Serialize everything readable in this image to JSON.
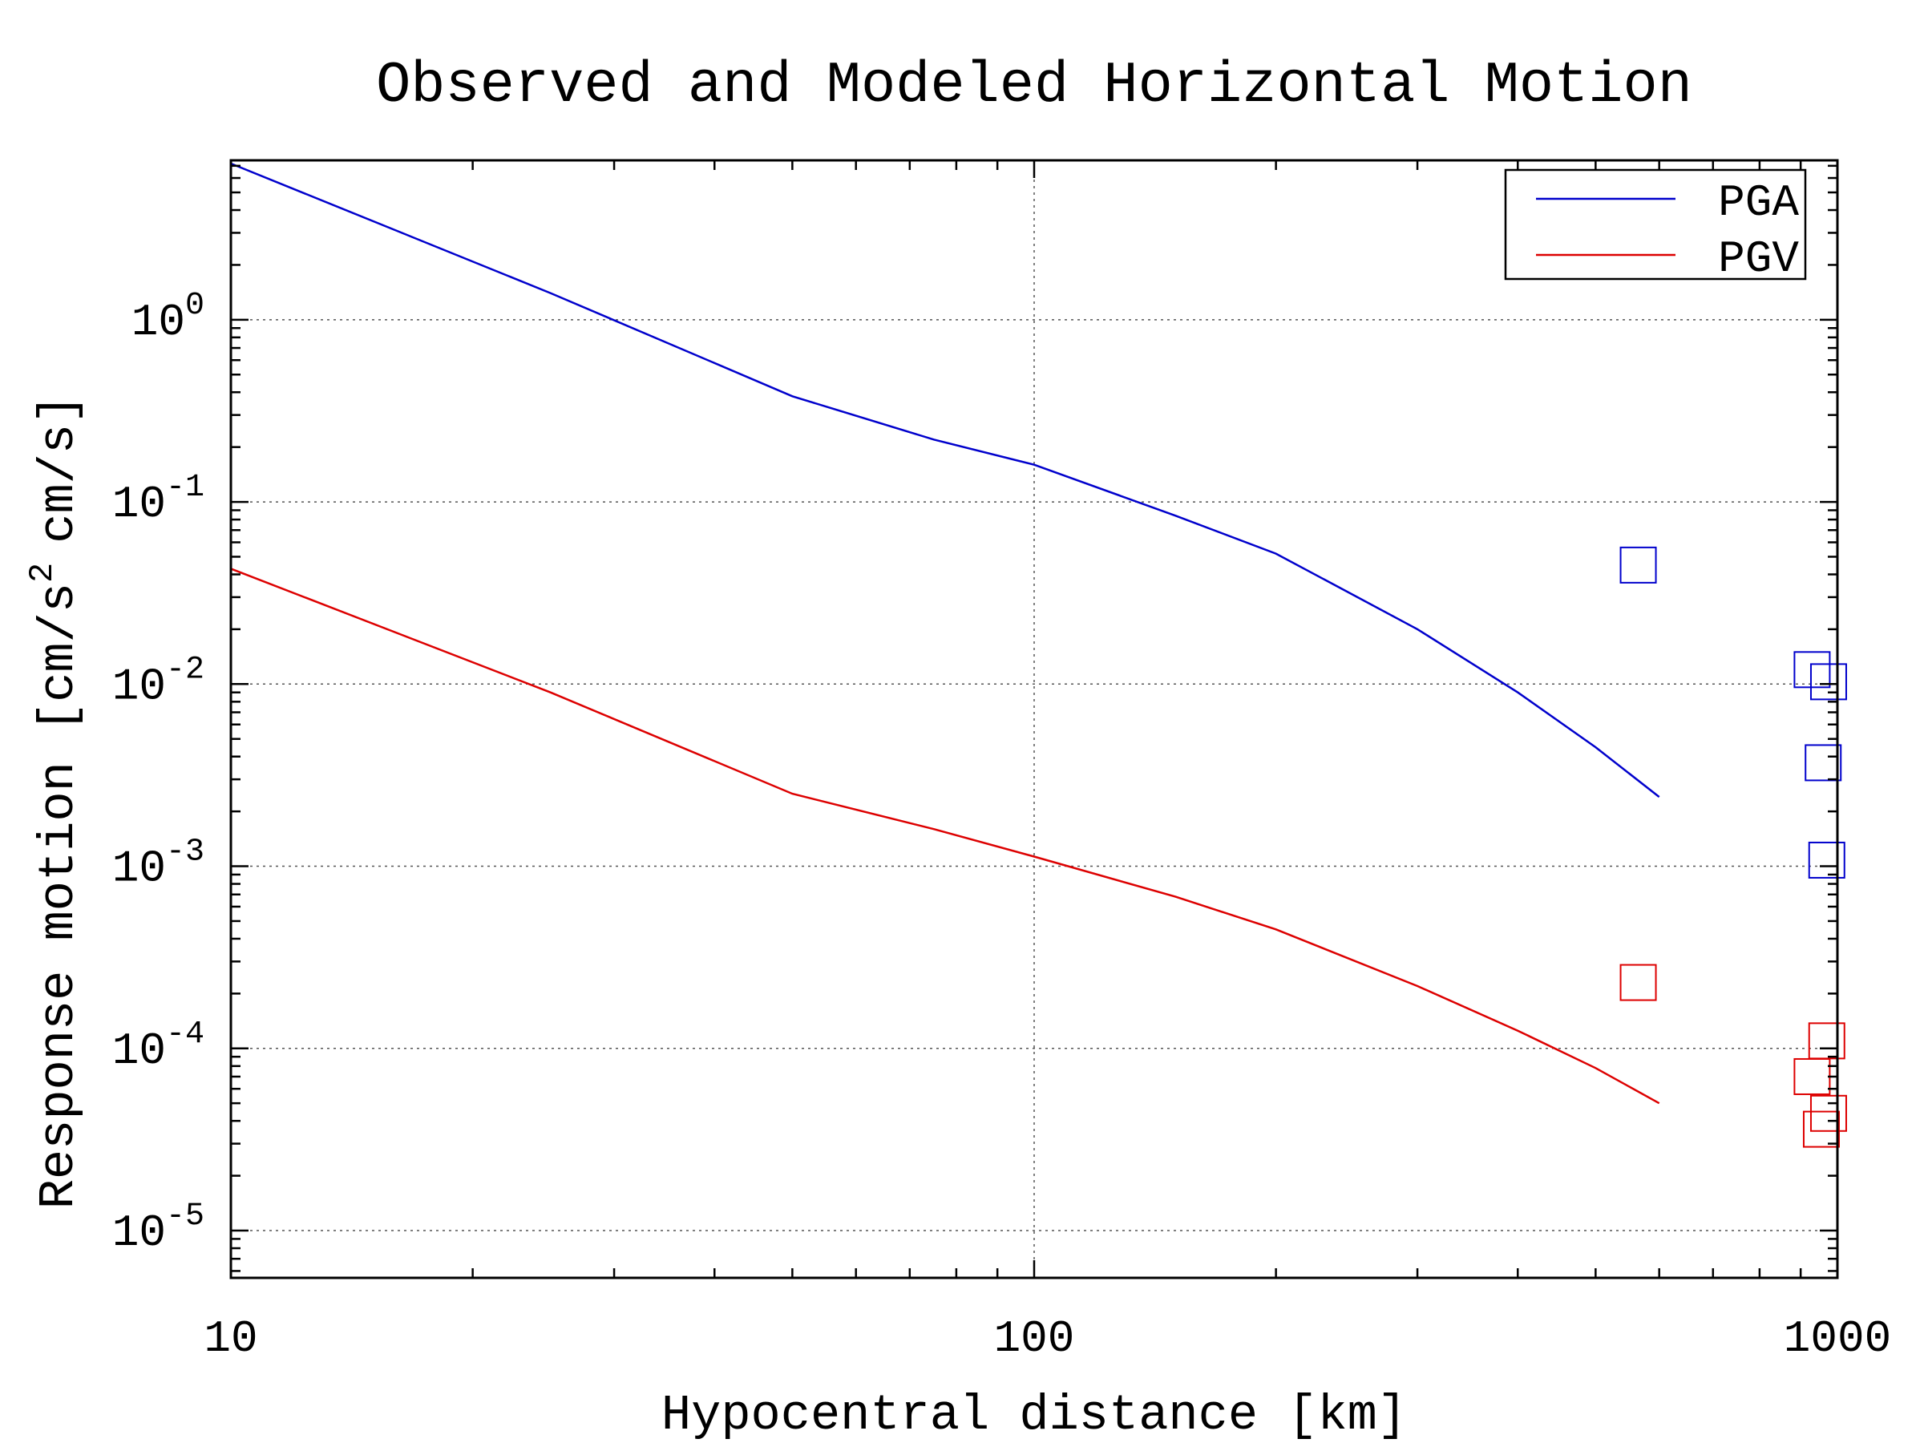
{
  "chart_data": {
    "type": "line",
    "title": "Observed and Modeled Horizontal Motion",
    "xlabel": "Hypocentral distance [km]",
    "ylabel": "Response motion [cm/s",
    "ylabel_sup": "2",
    "ylabel_tail": "cm/s]",
    "x_scale": "log",
    "y_scale": "log",
    "xlim": [
      10,
      1000
    ],
    "ylim": [
      5.5e-06,
      7.5
    ],
    "grid": true,
    "legend_position": "top-right",
    "x_ticks": [
      {
        "value": 10,
        "label": "10"
      },
      {
        "value": 100,
        "label": "100"
      },
      {
        "value": 1000,
        "label": "1000"
      }
    ],
    "y_ticks": [
      {
        "value": 1,
        "base": "10",
        "exp": "0"
      },
      {
        "value": 0.1,
        "base": "10",
        "exp": "-1"
      },
      {
        "value": 0.01,
        "base": "10",
        "exp": "-2"
      },
      {
        "value": 0.001,
        "base": "10",
        "exp": "-3"
      },
      {
        "value": 0.0001,
        "base": "10",
        "exp": "-4"
      },
      {
        "value": 1e-05,
        "base": "10",
        "exp": "-5"
      }
    ],
    "series": [
      {
        "name": "PGA",
        "color": "#0000cc",
        "x": [
          10,
          25,
          50,
          75,
          100,
          150,
          200,
          300,
          400,
          500,
          600
        ],
        "y": [
          7.2,
          1.4,
          0.38,
          0.22,
          0.16,
          0.084,
          0.052,
          0.02,
          0.009,
          0.0045,
          0.0024
        ]
      },
      {
        "name": "PGV",
        "color": "#dd0000",
        "x": [
          10,
          25,
          50,
          75,
          100,
          150,
          200,
          300,
          400,
          500,
          600
        ],
        "y": [
          0.043,
          0.009,
          0.0025,
          0.0016,
          0.00113,
          0.00068,
          0.00045,
          0.00022,
          0.000125,
          7.8e-05,
          5e-05
        ]
      }
    ],
    "observed": [
      {
        "series": "PGA",
        "color": "#0000cc",
        "points": [
          {
            "x": 565,
            "y": 0.045
          },
          {
            "x": 930,
            "y": 0.012
          },
          {
            "x": 975,
            "y": 0.0103
          },
          {
            "x": 960,
            "y": 0.0037
          },
          {
            "x": 970,
            "y": 0.00108
          }
        ]
      },
      {
        "series": "PGV",
        "color": "#dd0000",
        "points": [
          {
            "x": 565,
            "y": 0.00023
          },
          {
            "x": 970,
            "y": 0.00011
          },
          {
            "x": 930,
            "y": 7e-05
          },
          {
            "x": 975,
            "y": 4.4e-05
          },
          {
            "x": 955,
            "y": 3.6e-05
          }
        ]
      }
    ]
  }
}
